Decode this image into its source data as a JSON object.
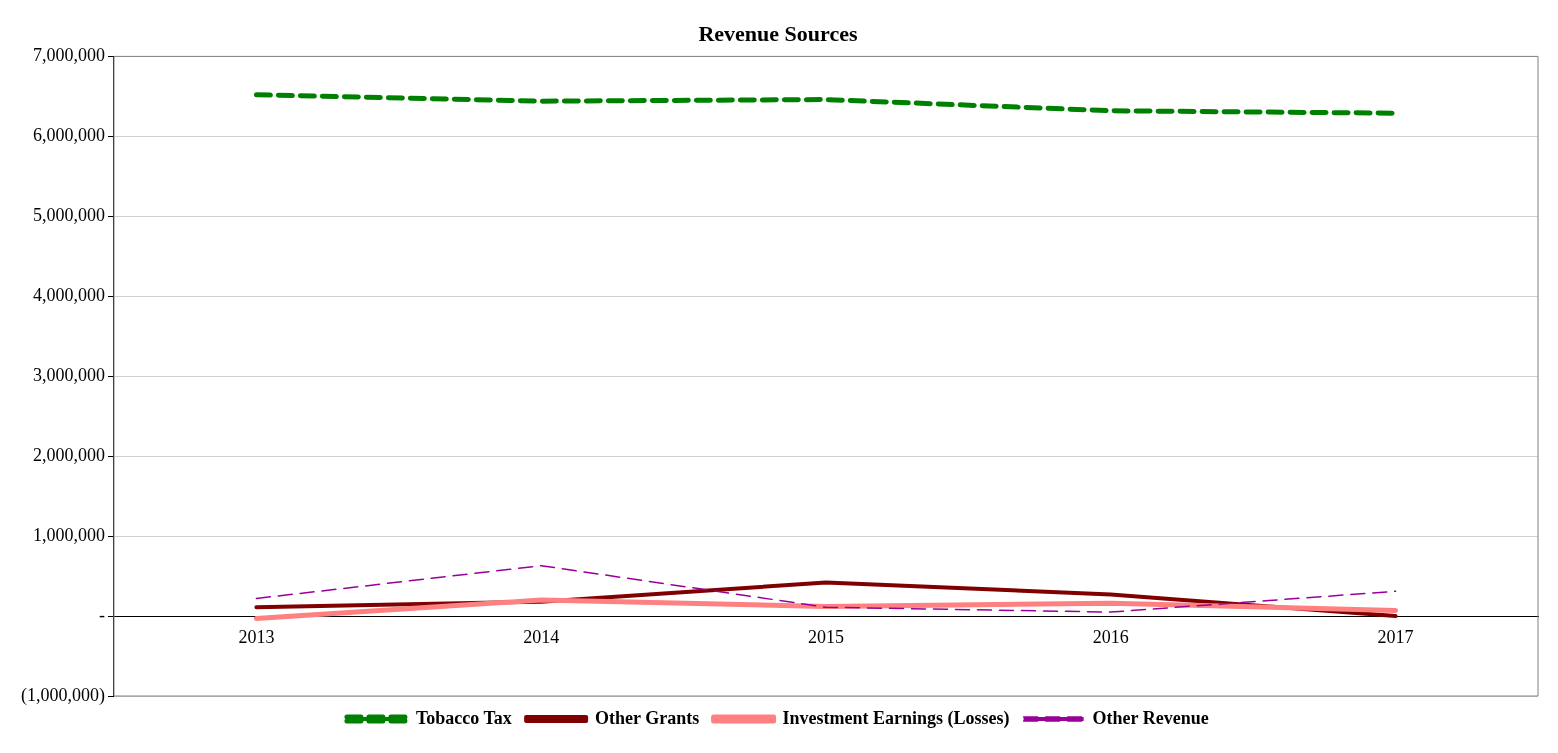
{
  "chart_data": {
    "type": "line",
    "title": "Revenue Sources",
    "categories": [
      "2013",
      "2014",
      "2015",
      "2016",
      "2017"
    ],
    "series": [
      {
        "name": "Tobacco Tax",
        "color": "#008000",
        "line_style": "dashed",
        "values": [
          6520000,
          6440000,
          6460000,
          6320000,
          6290000
        ]
      },
      {
        "name": "Other Grants",
        "color": "#800000",
        "line_style": "solid",
        "values": [
          110000,
          180000,
          420000,
          270000,
          0
        ]
      },
      {
        "name": "Investment Earnings (Losses)",
        "color": "#ff8080",
        "line_style": "solid",
        "values": [
          -30000,
          200000,
          120000,
          160000,
          70000
        ]
      },
      {
        "name": "Other Revenue",
        "color": "#990099",
        "line_style": "dashed",
        "values": [
          220000,
          630000,
          110000,
          50000,
          310000
        ]
      }
    ],
    "ylim": [
      -1000000,
      7000000
    ],
    "yticks": [
      {
        "value": -1000000,
        "label": "(1,000,000)"
      },
      {
        "value": 0,
        "label": "-"
      },
      {
        "value": 1000000,
        "label": "1,000,000"
      },
      {
        "value": 2000000,
        "label": "2,000,000"
      },
      {
        "value": 3000000,
        "label": "3,000,000"
      },
      {
        "value": 4000000,
        "label": "4,000,000"
      },
      {
        "value": 5000000,
        "label": "5,000,000"
      },
      {
        "value": 6000000,
        "label": "6,000,000"
      },
      {
        "value": 7000000,
        "label": "7,000,000"
      }
    ],
    "grid": "y",
    "legend": "bottom",
    "marker": "none"
  }
}
